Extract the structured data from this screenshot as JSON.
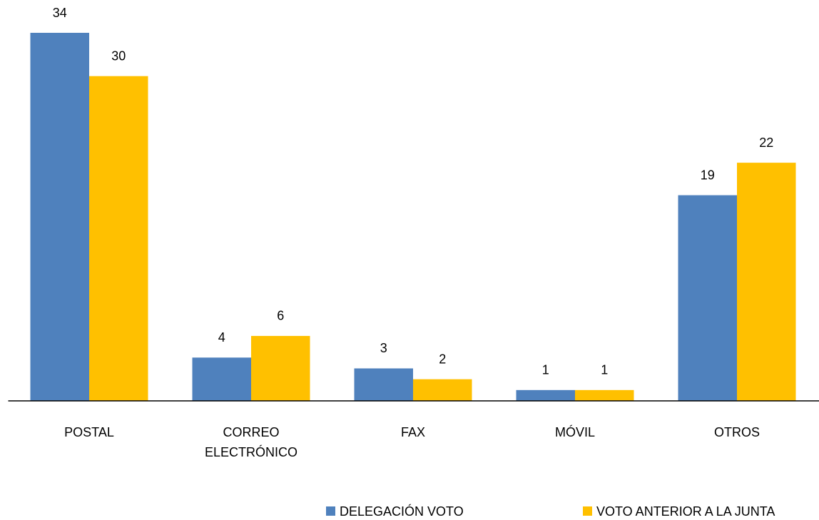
{
  "chart_data": {
    "type": "bar",
    "categories": [
      "POSTAL",
      "CORREO ELECTRÓNICO",
      "FAX",
      "MÓVIL",
      "OTROS"
    ],
    "series": [
      {
        "name": "DELEGACIÓN VOTO",
        "color": "#4f81bd",
        "values": [
          34,
          4,
          3,
          1,
          19
        ]
      },
      {
        "name": "VOTO ANTERIOR A LA JUNTA",
        "color": "#ffc000",
        "values": [
          30,
          6,
          2,
          1,
          22
        ]
      }
    ],
    "ylim": [
      0,
      34
    ],
    "legend": "bottom"
  }
}
